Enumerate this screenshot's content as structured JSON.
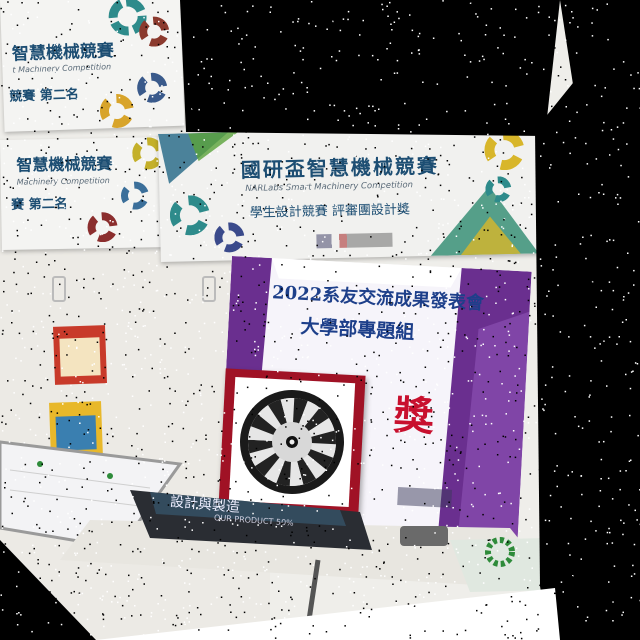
{
  "banners": {
    "top_left": {
      "title": "智慧機械競賽",
      "subtitle": "t Machinery Competition",
      "rank": "競賽  第二名"
    },
    "mid_left": {
      "title": "智慧機械競賽",
      "subtitle": "Machinery Competition",
      "rank": "賽  第二名"
    },
    "main": {
      "title": "國研盃智慧機械競賽",
      "subtitle": "NARLabs Smart Machinery Competition",
      "award": "學生設計競賽  評審團設計獎"
    }
  },
  "poster": {
    "line1": "2022系友交流成果發表會",
    "line2": "大學部專題組",
    "award_char": "獎"
  },
  "mat": {
    "text1": "設計與製造",
    "text2": "OUR PRODUCT 50%"
  },
  "colors": {
    "banner_blue": "#1d4e73",
    "gear_teal": "#2e8b8b",
    "gear_green": "#4a8b2e",
    "gear_yellow": "#d8b62a",
    "gear_red": "#8b2e2e",
    "poster_purple": "#6a2f8f",
    "award_red": "#c8102e",
    "frame_red": "#a01225"
  }
}
